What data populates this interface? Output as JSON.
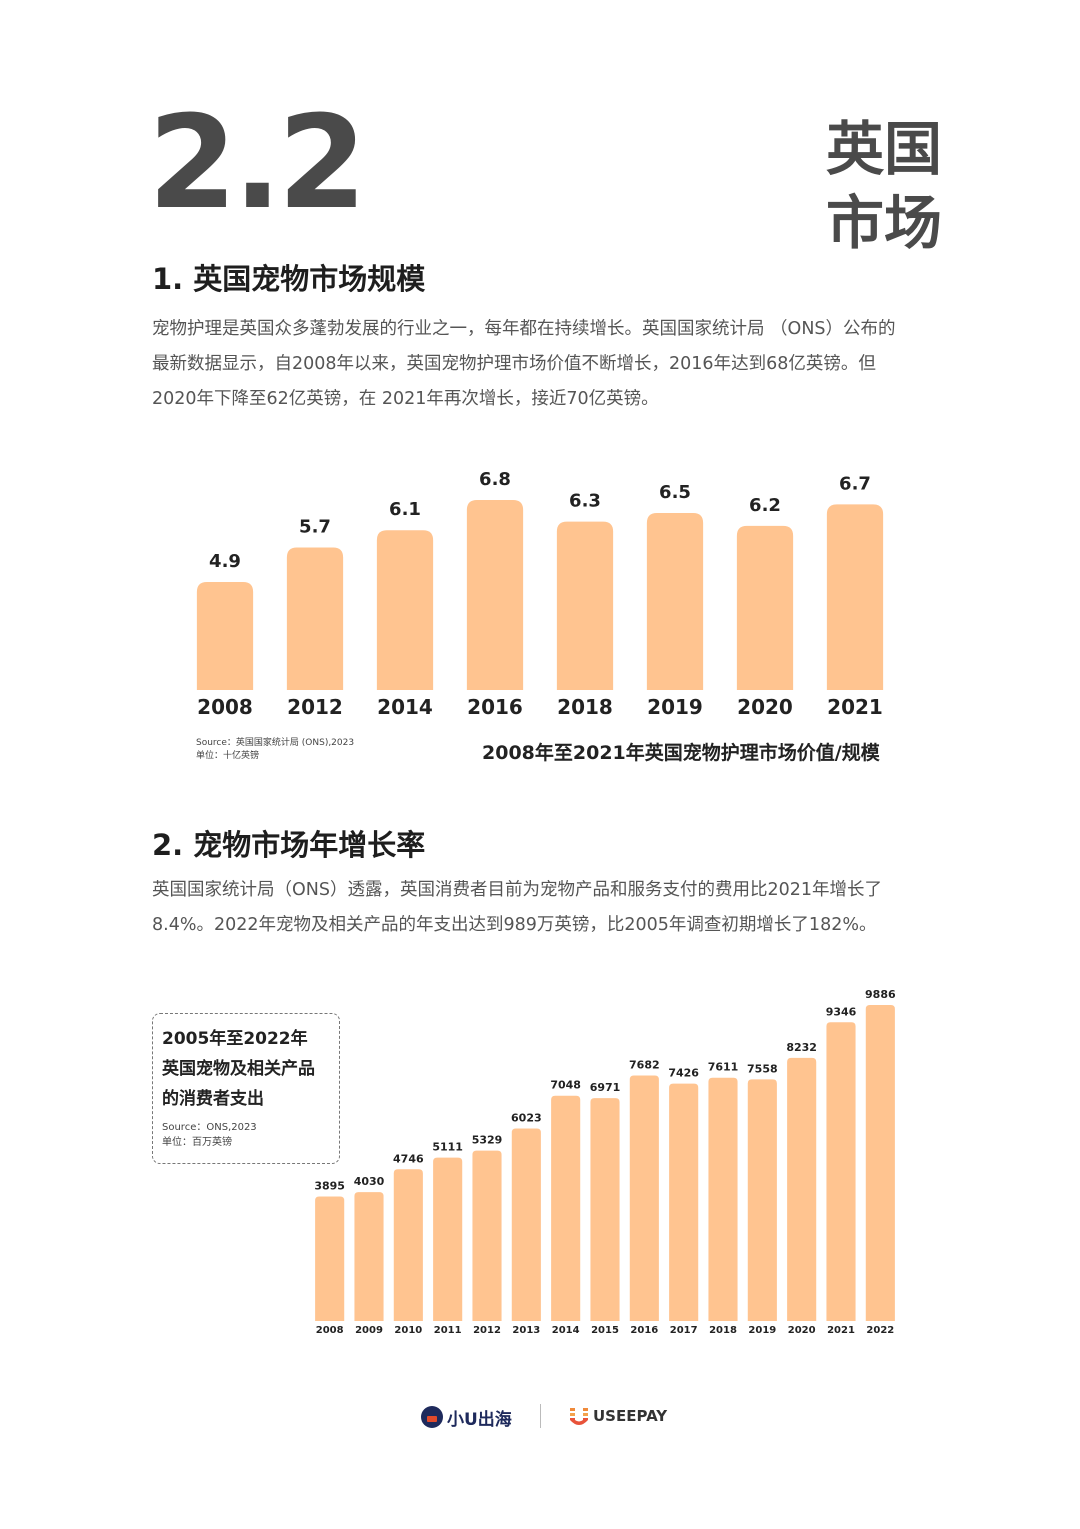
{
  "section": {
    "number": "2.2",
    "title_line1": "英国",
    "title_line2": "市场"
  },
  "part1": {
    "heading": "1. 英国宠物市场规模",
    "paragraph_lines": [
      "宠物护理是英国众多蓬勃发展的行业之一，每年都在持续增长。英国国家统计局 （ONS）公布的",
      "最新数据显示，自2008年以来，英国宠物护理市场价值不断增长，2016年达到68亿英镑。但",
      "2020年下降至62亿英镑，在 2021年再次增长，接近70亿英镑。"
    ],
    "source_line": "Source：英国国家统计局 (ONS),2023",
    "unit_line": "单位：十亿英镑",
    "caption": "2008年至2021年英国宠物护理市场价值/规模"
  },
  "part2": {
    "heading": "2. 宠物市场年增长率",
    "paragraph_lines": [
      "英国国家统计局（ONS）透露，英国消费者目前为宠物产品和服务支付的费用比2021年增长了",
      "8.4%。2022年宠物及相关产品的年支出达到989万英镑，比2005年调查初期增长了182%。"
    ],
    "legend_title_lines": [
      "2005年至2022年",
      "英国宠物及相关产品",
      "的消费者支出"
    ],
    "source_line": "Source：ONS,2023",
    "unit_line": "单位：百万英镑"
  },
  "footer": {
    "logo1_text": "小U出海",
    "logo2_text": "USEEPAY"
  },
  "colors": {
    "bar": "#FFC490",
    "heading": "#1e1e1e",
    "section_number": "#4a4a4a"
  },
  "chart_data": [
    {
      "type": "bar",
      "title": "2008年至2021年英国宠物护理市场价值/规模",
      "categories": [
        "2008",
        "2012",
        "2014",
        "2016",
        "2018",
        "2019",
        "2020",
        "2021"
      ],
      "values": [
        4.9,
        5.7,
        6.1,
        6.8,
        6.3,
        6.5,
        6.2,
        6.7
      ],
      "value_labels": [
        "4.9",
        "5.7",
        "6.1",
        "6.8",
        "6.3",
        "6.5",
        "6.2",
        "6.7"
      ],
      "xlabel": "",
      "ylabel": "十亿英镑",
      "ylim": [
        2.4,
        6.8
      ],
      "grid": false
    },
    {
      "type": "bar",
      "title": "2005年至2022年英国宠物及相关产品的消费者支出",
      "categories": [
        "2008",
        "2009",
        "2010",
        "2011",
        "2012",
        "2013",
        "2014",
        "2015",
        "2016",
        "2017",
        "2018",
        "2019",
        "2020",
        "2021",
        "2022"
      ],
      "values": [
        3895,
        4030,
        4746,
        5111,
        5329,
        6023,
        7048,
        6971,
        7682,
        7426,
        7611,
        7558,
        8232,
        9346,
        9886
      ],
      "value_labels": [
        "3895",
        "4030",
        "4746",
        "5111",
        "5329",
        "6023",
        "7048",
        "6971",
        "7682",
        "7426",
        "7611",
        "7558",
        "8232",
        "9346",
        "9886"
      ],
      "xlabel": "",
      "ylabel": "百万英镑",
      "ylim": [
        0,
        9886
      ],
      "grid": false
    }
  ]
}
